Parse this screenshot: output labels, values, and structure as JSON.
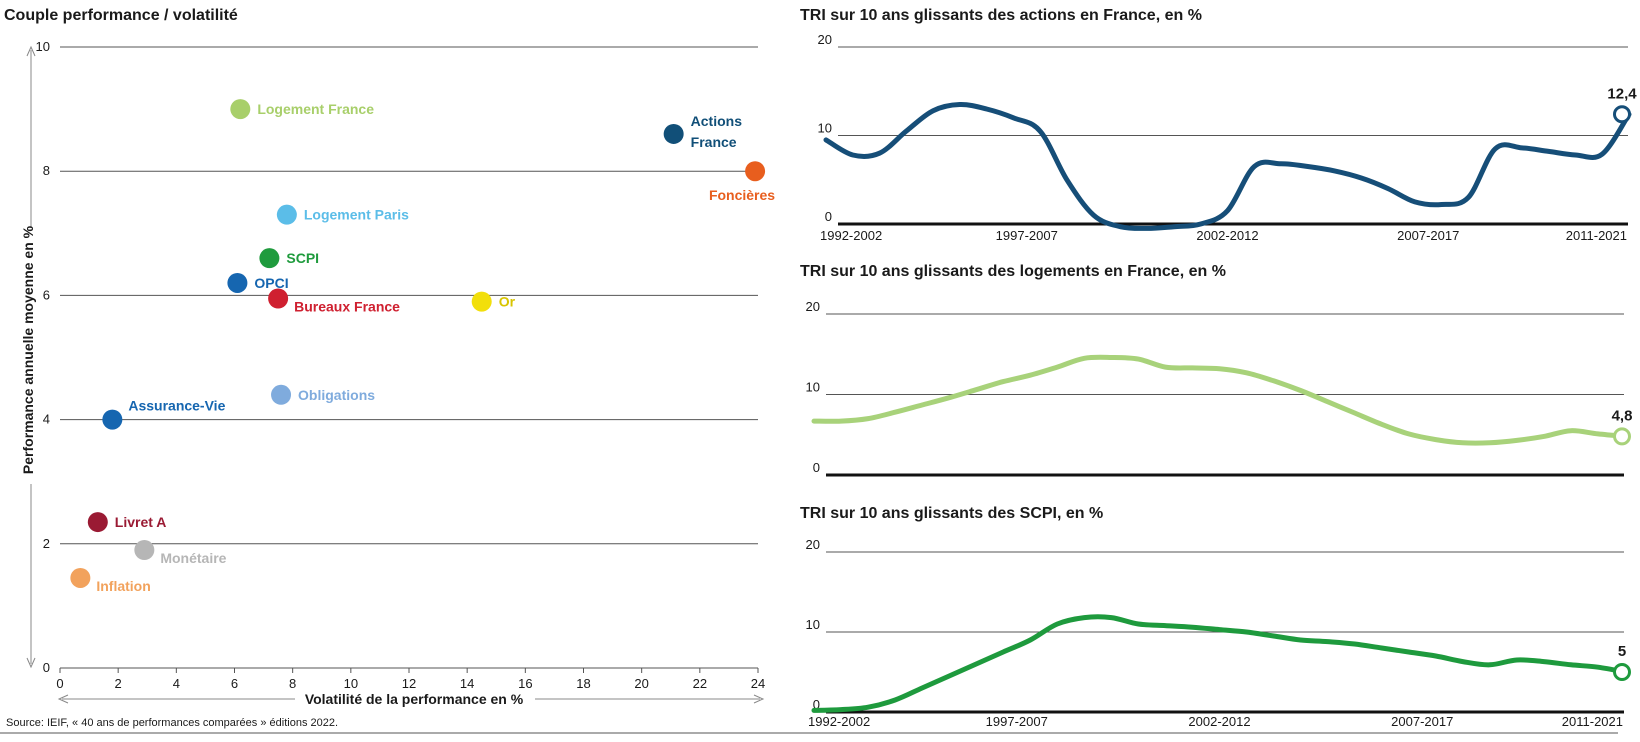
{
  "source": "Source: IEIF, « 40 ans de performances comparées » éditions 2022.",
  "chart_data": [
    {
      "type": "scatter",
      "title": "Couple performance / volatilité",
      "xlabel": "Volatilité de la performance en %",
      "ylabel": "Performance annuelle moyenne en %",
      "xlim": [
        0,
        24
      ],
      "ylim": [
        0,
        10
      ],
      "xticks": [
        "0",
        "2",
        "4",
        "6",
        "8",
        "10",
        "12",
        "14",
        "16",
        "18",
        "20",
        "22",
        "24"
      ],
      "yticks": [
        "0",
        "2",
        "4",
        "6",
        "8",
        "10"
      ],
      "grid": true,
      "points": [
        {
          "label": "Logement France",
          "x": 6.2,
          "y": 9.0,
          "color": "#a8cf6a",
          "label_pos": "right"
        },
        {
          "label": "Actions France",
          "x": 21.1,
          "y": 8.6,
          "color": "#114f78",
          "label_pos": "right-2line"
        },
        {
          "label": "Foncières",
          "x": 23.9,
          "y": 8.0,
          "color": "#e85e1e",
          "label_pos": "below-left"
        },
        {
          "label": "Logement Paris",
          "x": 7.8,
          "y": 7.3,
          "color": "#5bbde8",
          "label_pos": "right"
        },
        {
          "label": "SCPI",
          "x": 7.2,
          "y": 6.6,
          "color": "#1f9b3d",
          "label_pos": "right"
        },
        {
          "label": "OPCI",
          "x": 6.1,
          "y": 6.2,
          "color": "#1666b0",
          "label_pos": "right"
        },
        {
          "label": "Bureaux France",
          "x": 7.5,
          "y": 5.95,
          "color": "#cf2030",
          "label_pos": "right-below"
        },
        {
          "label": "Or",
          "x": 14.5,
          "y": 5.9,
          "color": "#f2df0b",
          "label_pos": "right"
        },
        {
          "label": "Obligations",
          "x": 7.6,
          "y": 4.4,
          "color": "#7fabdd",
          "label_pos": "right"
        },
        {
          "label": "Assurance-Vie",
          "x": 1.8,
          "y": 4.0,
          "color": "#1666b0",
          "label_pos": "right-above"
        },
        {
          "label": "Livret A",
          "x": 1.3,
          "y": 2.35,
          "color": "#9a1a33",
          "label_pos": "right"
        },
        {
          "label": "Monétaire",
          "x": 2.9,
          "y": 1.9,
          "color": "#b6b6b6",
          "label_pos": "right-below"
        },
        {
          "label": "Inflation",
          "x": 0.7,
          "y": 1.45,
          "color": "#f2a25c",
          "label_pos": "right-below"
        }
      ]
    },
    {
      "type": "line",
      "title": "TRI sur 10 ans glissants des actions en France, en %",
      "ylim": [
        0,
        20
      ],
      "yticks": [
        "20",
        "10",
        "0"
      ],
      "x_labels": [
        "1992-2002",
        "1997-2007",
        "2002-2012",
        "2007-2017",
        "2011-2021"
      ],
      "color": "#164e78",
      "end_value_label": "12,4",
      "values": [
        9.5,
        7.8,
        8.0,
        10.5,
        12.8,
        13.5,
        13.0,
        12.0,
        10.5,
        5.0,
        1.0,
        -0.3,
        -0.5,
        -0.3,
        0.0,
        1.5,
        6.5,
        6.8,
        6.5,
        6.0,
        5.2,
        4.0,
        2.5,
        2.2,
        3.0,
        8.5,
        8.6,
        8.2,
        7.8,
        7.9,
        12.4
      ]
    },
    {
      "type": "line",
      "title": "TRI sur 10 ans glissants des logements en France, en %",
      "ylim": [
        0,
        20
      ],
      "yticks": [
        "20",
        "10",
        "0"
      ],
      "color": "#a8d27a",
      "end_value_label": "4,8",
      "values": [
        6.7,
        6.7,
        7.0,
        7.8,
        8.7,
        9.6,
        10.6,
        11.6,
        12.4,
        13.4,
        14.5,
        14.6,
        14.4,
        13.4,
        13.3,
        13.2,
        12.7,
        11.7,
        10.5,
        9.1,
        7.7,
        6.3,
        5.1,
        4.4,
        4.0,
        4.0,
        4.3,
        4.8,
        5.5,
        5.1,
        4.8
      ]
    },
    {
      "type": "line",
      "title": "TRI sur 10 ans glissants des SCPI, en %",
      "ylim": [
        0,
        20
      ],
      "yticks": [
        "20",
        "10",
        "0"
      ],
      "x_labels": [
        "1992-2002",
        "1997-2007",
        "2002-2012",
        "2007-2017",
        "2011-2021"
      ],
      "color": "#1e9a3d",
      "end_value_label": "5",
      "values": [
        0.2,
        0.3,
        0.6,
        1.5,
        3.0,
        4.5,
        6.0,
        7.5,
        9.0,
        11.0,
        11.8,
        11.8,
        11.0,
        10.8,
        10.6,
        10.3,
        10.0,
        9.5,
        9.0,
        8.8,
        8.5,
        8.0,
        7.5,
        7.0,
        6.3,
        5.9,
        6.5,
        6.3,
        5.9,
        5.6,
        5.0
      ]
    }
  ]
}
